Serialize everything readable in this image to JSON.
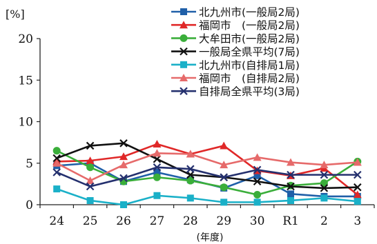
{
  "chart_data": {
    "type": "line",
    "unit_label": "[%]",
    "xlabel": "(年度)",
    "ylabel": "",
    "ylim": [
      0,
      20
    ],
    "yticks": [
      0,
      5,
      10,
      15,
      20
    ],
    "categories": [
      "24",
      "25",
      "26",
      "27",
      "28",
      "29",
      "30",
      "R1",
      "2",
      "3"
    ],
    "grid": false,
    "legend_position": "top-right",
    "series": [
      {
        "name": "北九州市(一般局2局)",
        "color": "#1f5fa8",
        "marker": "square",
        "values": [
          4.7,
          5.0,
          2.8,
          3.9,
          3.0,
          2.0,
          3.5,
          1.3,
          1.0,
          1.0
        ]
      },
      {
        "name": "福岡市　(一般局2局)",
        "color": "#e02828",
        "marker": "triangle",
        "values": [
          5.2,
          5.3,
          5.8,
          7.3,
          6.1,
          7.1,
          4.1,
          3.5,
          4.4,
          1.2
        ]
      },
      {
        "name": "大牟田市(一般局2局)",
        "color": "#3aae3a",
        "marker": "circle",
        "values": [
          6.5,
          4.5,
          2.8,
          3.3,
          2.9,
          2.1,
          1.2,
          2.3,
          2.6,
          5.2
        ]
      },
      {
        "name": "一般局全県平均(7局)",
        "color": "#111111",
        "marker": "x",
        "values": [
          5.6,
          7.1,
          7.4,
          5.5,
          3.6,
          3.3,
          2.8,
          2.2,
          2.0,
          2.1
        ]
      },
      {
        "name": "北九州市(自排局1局)",
        "color": "#1ab0c8",
        "marker": "square",
        "values": [
          1.9,
          0.5,
          0.0,
          1.1,
          0.8,
          0.3,
          0.3,
          0.5,
          0.8,
          0.4
        ]
      },
      {
        "name": "福岡市　(自排局2局)",
        "color": "#e66a6a",
        "marker": "triangle",
        "values": [
          5.0,
          2.9,
          4.8,
          6.2,
          6.1,
          4.8,
          5.7,
          5.1,
          4.8,
          5.1
        ]
      },
      {
        "name": "自排局全県平均(3局)",
        "color": "#24306e",
        "marker": "x",
        "values": [
          3.9,
          2.2,
          3.2,
          4.5,
          4.3,
          3.3,
          4.2,
          3.6,
          3.6,
          3.6
        ]
      }
    ]
  }
}
